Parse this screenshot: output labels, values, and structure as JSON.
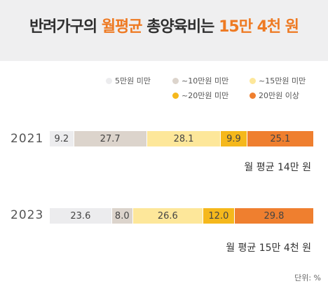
{
  "header": {
    "title_pre": "반려가구의 ",
    "title_hl1": "월평균",
    "title_mid": " 총양육비는 ",
    "title_hl2": "15만 4천 원"
  },
  "colors": {
    "header_bg": "#efeff0",
    "accent": "#ee7a23"
  },
  "chart_data": {
    "type": "bar",
    "orientation": "horizontal-stacked-100",
    "categories": [
      "2021",
      "2023"
    ],
    "series": [
      {
        "name": "5만원 미만",
        "color": "#ececee",
        "values": [
          9.2,
          23.6
        ]
      },
      {
        "name": "~10만원 미만",
        "color": "#dcd4cc",
        "values": [
          27.7,
          8.0
        ]
      },
      {
        "name": "~15만원 미만",
        "color": "#fde79a",
        "values": [
          28.1,
          26.6
        ]
      },
      {
        "name": "~20만원 미만",
        "color": "#f5b81c",
        "values": [
          9.9,
          12.0
        ]
      },
      {
        "name": "20만원 이상",
        "color": "#ef7f2f",
        "values": [
          25.1,
          29.8
        ]
      }
    ],
    "value_labels": [
      [
        "9.2",
        "27.7",
        "28.1",
        "9.9",
        "25.1"
      ],
      [
        "23.6",
        "8.0",
        "26.6",
        "12.0",
        "29.8"
      ]
    ],
    "annotations": [
      "월 평균 14만 원",
      "월 평균 15만 4천 원"
    ],
    "unit": "단위: %",
    "xlim": [
      0,
      100
    ],
    "legend_position": "top-right"
  }
}
